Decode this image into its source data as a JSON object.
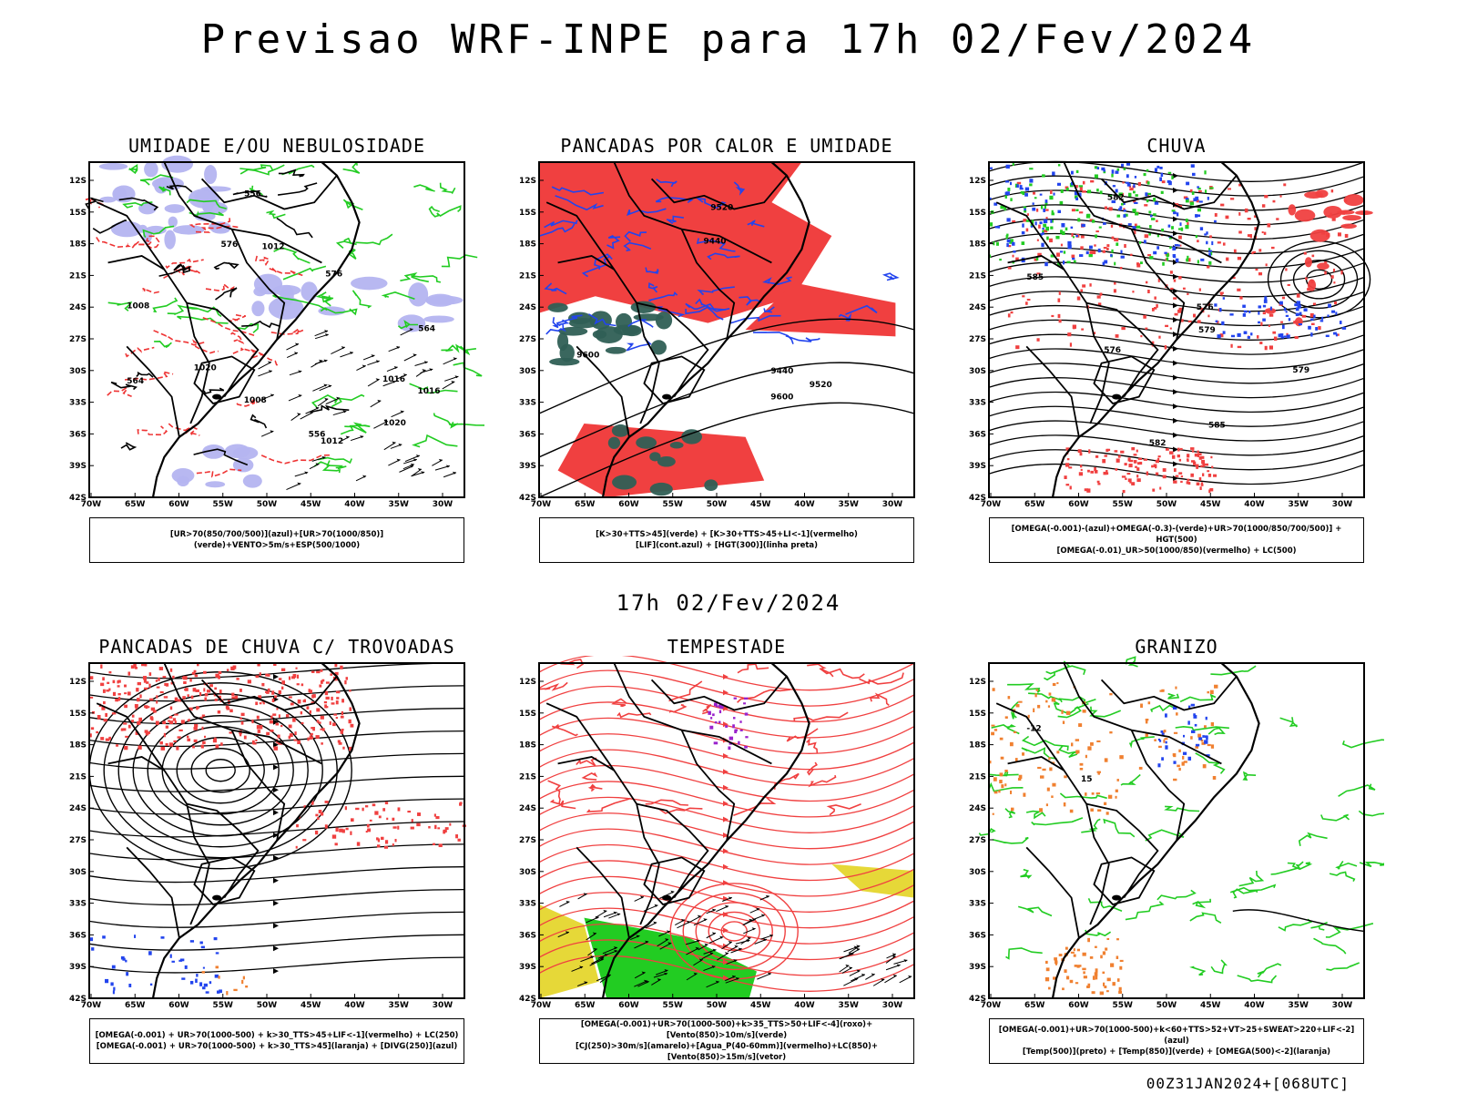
{
  "title": "Previsao WRF-INPE  para 17h 02/Fev/2024",
  "mid_title": "17h 02/Fev/2024",
  "run_stamp": "00Z31JAN2024+[068UTC]",
  "axes": {
    "lat_ticks": [
      "12S",
      "15S",
      "18S",
      "21S",
      "24S",
      "27S",
      "30S",
      "33S",
      "36S",
      "39S",
      "42S"
    ],
    "lon_ticks": [
      "70W",
      "65W",
      "60W",
      "55W",
      "50W",
      "45W",
      "40W",
      "35W",
      "30W"
    ]
  },
  "panels": [
    {
      "id": "umidade",
      "title": "UMIDADE E/OU NEBULOSIDADE",
      "legend": [
        "[UR>70(850/700/500)](azul)+[UR>70(1000/850)](verde)+VENTO>5m/s+ESP(500/1000)"
      ],
      "colors": {
        "blue_fill": "#b4b4f0",
        "green_line": "#22cc22",
        "red_dash": "#ee3333",
        "black": "#000000"
      },
      "labels": [
        "1008",
        "1012",
        "1016",
        "1020",
        "576",
        "564",
        "556"
      ]
    },
    {
      "id": "pancadas-calor",
      "title": "PANCADAS POR CALOR E UMIDADE",
      "legend": [
        "[K>30+TTS>45](verde) + [K>30+TTS>45+LI<-1](vermelho)",
        "[LIF](cont.azul) + [HGT(300)](linha preta)"
      ],
      "colors": {
        "red_fill": "#f04040",
        "green_fill": "#2f5f55",
        "blue_line": "#2244ee",
        "black": "#000000"
      },
      "labels": [
        "9600",
        "9520",
        "9440"
      ]
    },
    {
      "id": "chuva",
      "title": "CHUVA",
      "legend": [
        "[OMEGA(-0.001)-(azul)+OMEGA(-0.3)-(verde)+UR>70(1000/850/700/500)] + HGT(500)",
        "[OMEGA(-0.01)_UR>50(1000/850)(vermelho) + LC(500)"
      ],
      "colors": {
        "red_fill": "#f04040",
        "green": "#22cc22",
        "blue": "#2244ee",
        "black": "#000000"
      },
      "labels": [
        "585",
        "582",
        "579",
        "576"
      ]
    },
    {
      "id": "pancadas-trovoadas",
      "title": "PANCADAS DE CHUVA C/ TROVOADAS",
      "legend": [
        "[OMEGA(-0.001) + UR>70(1000-500) + k>30_TTS>45+LIF<-1](vermelho) + LC(250)",
        "[OMEGA(-0.001) + UR>70(1000-500) + k>30_TTS>45](laranja) + [DIVG(250)](azul)"
      ],
      "colors": {
        "red": "#f04040",
        "orange": "#f08030",
        "blue": "#2244ee",
        "black": "#000000"
      },
      "labels": []
    },
    {
      "id": "tempestade",
      "title": "TEMPESTADE",
      "legend": [
        "[OMEGA(-0.001)+UR>70(1000-500)+k>35_TTS>50+LIF<-4](roxo)+[Vento(850)>10m/s](verde)",
        "[CJ(250)>30m/s](amarelo)+[Agua_P(40-60mm)](vermelho)+LC(850)+[Vento(850)>15m/s](vetor)"
      ],
      "colors": {
        "yellow": "#e6d838",
        "green": "#22cc22",
        "red": "#f04040",
        "purple": "#9922cc",
        "black": "#000000"
      },
      "labels": []
    },
    {
      "id": "granizo",
      "title": "GRANIZO",
      "legend": [
        "[OMEGA(-0.001)+UR>70(1000-500)+k<60+TTS>52+VT>25+SWEAT>220+LIF<-2](azul)",
        "[Temp(500)](preto) + [Temp(850)](verde) + [OMEGA(500)<-2](laranja)"
      ],
      "colors": {
        "green": "#22cc22",
        "orange": "#f08030",
        "blue": "#2244ee",
        "black": "#000000"
      },
      "labels": [
        "-12",
        "15"
      ]
    }
  ]
}
